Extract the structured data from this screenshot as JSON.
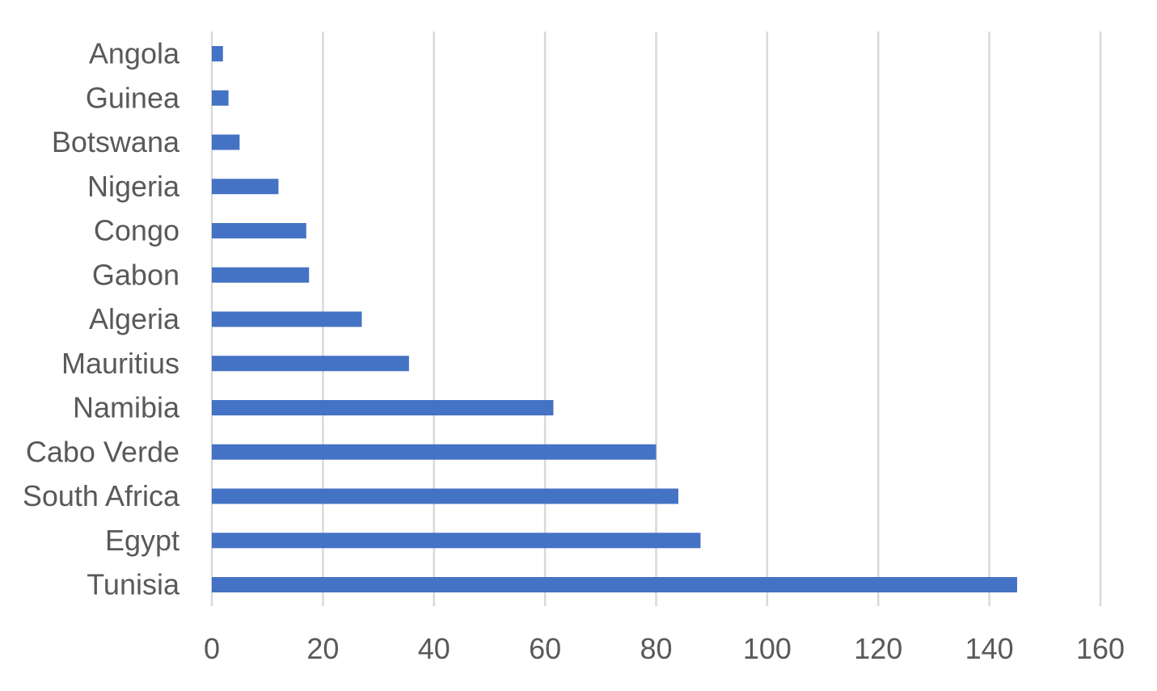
{
  "chart_data": {
    "type": "bar",
    "orientation": "horizontal",
    "categories": [
      "Angola",
      "Guinea",
      "Botswana",
      "Nigeria",
      "Congo",
      "Gabon",
      "Algeria",
      "Mauritius",
      "Namibia",
      "Cabo Verde",
      "South Africa",
      "Egypt",
      "Tunisia"
    ],
    "values": [
      2,
      3,
      5,
      12,
      17,
      17.5,
      27,
      35.5,
      61.5,
      80,
      84,
      88,
      145
    ],
    "xlim": [
      0,
      160
    ],
    "xticks": [
      "0",
      "20",
      "40",
      "60",
      "80",
      "100",
      "120",
      "140",
      "160"
    ],
    "grid": "vertical",
    "legend": "none",
    "colors": {
      "bar": "#4472C4",
      "grid": "#D9D9D9",
      "text": "#595959"
    }
  }
}
